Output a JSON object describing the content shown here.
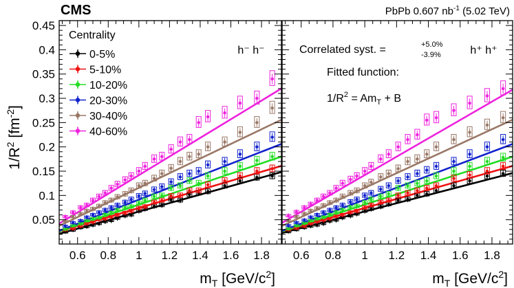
{
  "header": {
    "experiment": "CMS",
    "lumi_text": "PbPb 0.607 nb",
    "lumi_exp": "-1",
    "energy": "(5.02 TeV)"
  },
  "chart_data": {
    "type": "scatter",
    "ylabel": {
      "base": "1/R",
      "sup": "2",
      "unit_open": " [fm",
      "unit_sup": "-2",
      "unit_close": "]"
    },
    "xlabel": {
      "base": "m",
      "sub": "T",
      "unit": " [GeV/c",
      "unit_sup": "2",
      "unit_close": "]"
    },
    "xlim": [
      0.48,
      1.93
    ],
    "ylim": [
      0,
      0.46
    ],
    "x_ticks": [
      "0.6",
      "0.8",
      "1",
      "1.2",
      "1.4",
      "1.6",
      "1.8"
    ],
    "x_tick_values": [
      0.6,
      0.8,
      1.0,
      1.2,
      1.4,
      1.6,
      1.8
    ],
    "y_ticks": [
      "0.05",
      "0.1",
      "0.15",
      "0.2",
      "0.25",
      "0.3",
      "0.35",
      "0.4",
      "0.45"
    ],
    "y_tick_values": [
      0.05,
      0.1,
      0.15,
      0.2,
      0.25,
      0.3,
      0.35,
      0.4,
      0.45
    ],
    "legend": {
      "title": "Centrality",
      "entries": [
        "0-5%",
        "5-10%",
        "10-20%",
        "20-30%",
        "30-40%",
        "40-60%"
      ]
    },
    "colors": [
      "#000000",
      "#ee1111",
      "#22dd22",
      "#1122cc",
      "#997766",
      "#ee22dd"
    ],
    "mt": [
      0.52,
      0.57,
      0.62,
      0.66,
      0.7,
      0.74,
      0.78,
      0.82,
      0.86,
      0.91,
      0.95,
      1.0,
      1.04,
      1.1,
      1.15,
      1.21,
      1.27,
      1.33,
      1.39,
      1.45,
      1.56,
      1.66,
      1.77,
      1.87
    ],
    "panels": [
      {
        "name": "h- h-",
        "label": "h⁻ h⁻",
        "fits": [
          {
            "A": 0.0877,
            "B": -0.021
          },
          {
            "A": 0.0932,
            "B": -0.019
          },
          {
            "A": 0.1062,
            "B": -0.025
          },
          {
            "A": 0.1233,
            "B": -0.032
          },
          {
            "A": 0.1507,
            "B": -0.035
          },
          {
            "A": 0.1918,
            "B": -0.05
          }
        ],
        "series": [
          {
            "name": "0-5%",
            "values": [
              0.0255,
              0.029,
              0.034,
              0.036,
              0.039,
              0.042,
              0.046,
              0.048,
              0.053,
              0.058,
              0.06,
              0.068,
              0.072,
              0.078,
              0.08,
              0.092,
              0.09,
              0.102,
              0.105,
              0.108,
              0.12,
              0.13,
              0.137,
              0.14
            ]
          },
          {
            "name": "5-10%",
            "values": [
              0.0295,
              0.032,
              0.037,
              0.042,
              0.045,
              0.05,
              0.052,
              0.056,
              0.06,
              0.064,
              0.068,
              0.074,
              0.077,
              0.086,
              0.09,
              0.099,
              0.1,
              0.11,
              0.11,
              0.122,
              0.13,
              0.14,
              0.15,
              0.155
            ]
          },
          {
            "name": "10-20%",
            "values": [
              0.031,
              0.038,
              0.042,
              0.048,
              0.052,
              0.054,
              0.06,
              0.064,
              0.07,
              0.074,
              0.077,
              0.084,
              0.09,
              0.098,
              0.1,
              0.115,
              0.12,
              0.13,
              0.125,
              0.14,
              0.15,
              0.16,
              0.172,
              0.18
            ]
          },
          {
            "name": "20-30%",
            "values": [
              0.037,
              0.044,
              0.048,
              0.055,
              0.06,
              0.065,
              0.07,
              0.075,
              0.08,
              0.086,
              0.092,
              0.099,
              0.104,
              0.112,
              0.118,
              0.128,
              0.138,
              0.145,
              0.15,
              0.163,
              0.17,
              0.185,
              0.2,
              0.22
            ]
          },
          {
            "name": "30-40%",
            "values": [
              0.047,
              0.056,
              0.062,
              0.068,
              0.072,
              0.078,
              0.085,
              0.09,
              0.097,
              0.103,
              0.11,
              0.12,
              0.125,
              0.135,
              0.145,
              0.156,
              0.17,
              0.18,
              0.185,
              0.2,
              0.21,
              0.23,
              0.25,
              0.28
            ]
          },
          {
            "name": "40-60%",
            "values": [
              0.056,
              0.065,
              0.075,
              0.08,
              0.09,
              0.098,
              0.105,
              0.115,
              0.123,
              0.132,
              0.14,
              0.15,
              0.16,
              0.175,
              0.18,
              0.195,
              0.21,
              0.215,
              0.25,
              0.262,
              0.27,
              0.29,
              0.3,
              0.34
            ]
          }
        ]
      },
      {
        "name": "h+ h+",
        "label": "h⁺ h⁺",
        "fits": [
          {
            "A": 0.085,
            "B": -0.018
          },
          {
            "A": 0.0932,
            "B": -0.019
          },
          {
            "A": 0.1062,
            "B": -0.025
          },
          {
            "A": 0.1233,
            "B": -0.032
          },
          {
            "A": 0.1507,
            "B": -0.035
          },
          {
            "A": 0.189,
            "B": -0.047
          }
        ],
        "series": [
          {
            "name": "0-5%",
            "values": [
              0.026,
              0.03,
              0.034,
              0.037,
              0.039,
              0.042,
              0.047,
              0.049,
              0.054,
              0.058,
              0.062,
              0.068,
              0.072,
              0.077,
              0.082,
              0.09,
              0.092,
              0.1,
              0.103,
              0.11,
              0.12,
              0.13,
              0.14,
              0.145
            ]
          },
          {
            "name": "5-10%",
            "values": [
              0.03,
              0.033,
              0.037,
              0.042,
              0.046,
              0.049,
              0.052,
              0.057,
              0.06,
              0.065,
              0.068,
              0.075,
              0.08,
              0.086,
              0.09,
              0.1,
              0.105,
              0.11,
              0.115,
              0.12,
              0.135,
              0.142,
              0.15,
              0.16
            ]
          },
          {
            "name": "10-20%",
            "values": [
              0.032,
              0.038,
              0.043,
              0.048,
              0.052,
              0.055,
              0.06,
              0.065,
              0.07,
              0.075,
              0.078,
              0.085,
              0.092,
              0.098,
              0.103,
              0.115,
              0.12,
              0.125,
              0.13,
              0.14,
              0.15,
              0.16,
              0.17,
              0.178
            ]
          },
          {
            "name": "20-30%",
            "values": [
              0.038,
              0.044,
              0.049,
              0.055,
              0.06,
              0.065,
              0.07,
              0.075,
              0.08,
              0.087,
              0.092,
              0.1,
              0.105,
              0.113,
              0.12,
              0.13,
              0.138,
              0.145,
              0.152,
              0.16,
              0.17,
              0.185,
              0.2,
              0.215
            ]
          },
          {
            "name": "30-40%",
            "values": [
              0.048,
              0.056,
              0.062,
              0.068,
              0.073,
              0.079,
              0.085,
              0.09,
              0.098,
              0.105,
              0.11,
              0.12,
              0.127,
              0.138,
              0.145,
              0.155,
              0.17,
              0.175,
              0.185,
              0.2,
              0.215,
              0.23,
              0.245,
              0.26
            ]
          },
          {
            "name": "40-60%",
            "values": [
              0.058,
              0.066,
              0.075,
              0.082,
              0.09,
              0.098,
              0.105,
              0.115,
              0.125,
              0.133,
              0.14,
              0.15,
              0.16,
              0.175,
              0.185,
              0.2,
              0.215,
              0.225,
              0.255,
              0.26,
              0.275,
              0.29,
              0.305,
              0.32
            ]
          }
        ]
      }
    ],
    "annotations": {
      "syst_label": "Correlated syst. =",
      "syst_plus": "+5.0%",
      "syst_minus": "-3.9%",
      "fit_title": "Fitted function:",
      "fit_lhs_base": "1/R",
      "fit_lhs_sup": "2",
      "fit_rhs_a": " = Am",
      "fit_rhs_sub": "T",
      "fit_rhs_b": " + B"
    }
  }
}
